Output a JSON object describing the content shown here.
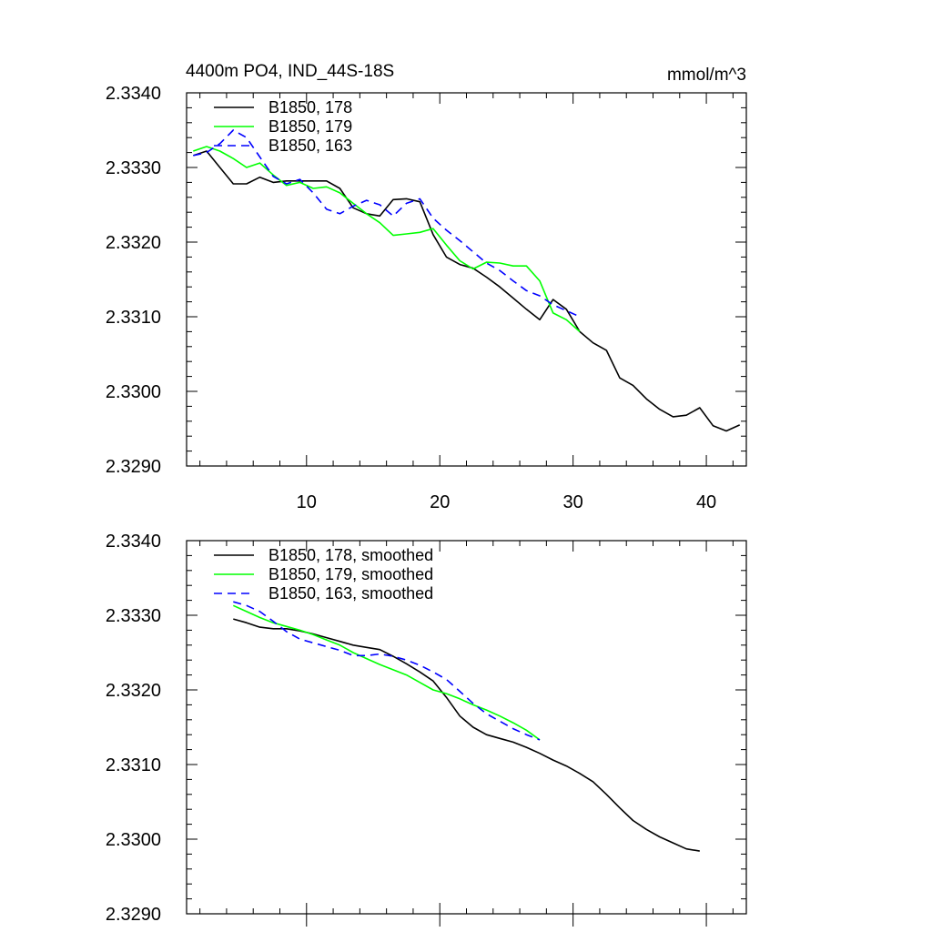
{
  "chart_data": [
    {
      "type": "line",
      "title_left": "4400m PO4, IND_44S-18S",
      "title_right": "mmol/m^3",
      "xlabel": "",
      "ylabel": "",
      "xlim": [
        1,
        43
      ],
      "ylim": [
        2.329,
        2.334
      ],
      "x_ticks": [
        10,
        20,
        30,
        40
      ],
      "x_tick_labels": [
        "10",
        "20",
        "30",
        "40"
      ],
      "y_ticks": [
        2.329,
        2.33,
        2.331,
        2.332,
        2.333,
        2.334
      ],
      "y_tick_labels": [
        "2.3290",
        "2.3300",
        "2.3310",
        "2.3320",
        "2.3330",
        "2.3340"
      ],
      "legend_position": "top-left",
      "series": [
        {
          "name": "B1850, 178",
          "color": "#000000",
          "dash": "solid",
          "x": [
            1.5,
            2.5,
            3.5,
            4.5,
            5.5,
            6.5,
            7.5,
            8.5,
            9.5,
            10.5,
            11.5,
            12.5,
            13.5,
            14.5,
            15.5,
            16.5,
            17.5,
            18.5,
            19.5,
            20.5,
            21.5,
            22.5,
            23.5,
            24.5,
            25.5,
            26.5,
            27.5,
            28.5,
            29.5,
            30.5,
            31.5,
            32.5,
            33.5,
            34.5,
            35.5,
            36.5,
            37.5,
            38.5,
            39.5,
            40.5,
            41.5,
            42.5
          ],
          "y": [
            2.33316,
            2.33322,
            2.333,
            2.33278,
            2.33278,
            2.33287,
            2.3328,
            2.33282,
            2.33282,
            2.33282,
            2.33282,
            2.33272,
            2.33246,
            2.33238,
            2.33235,
            2.33257,
            2.33258,
            2.33254,
            2.3321,
            2.3318,
            2.3317,
            2.33165,
            2.33153,
            2.3314,
            2.33125,
            2.3311,
            2.33096,
            2.33123,
            2.3311,
            2.3308,
            2.33065,
            2.33055,
            2.33018,
            2.33008,
            2.3299,
            2.32976,
            2.32966,
            2.32968,
            2.32978,
            2.32954,
            2.32947,
            2.32955
          ]
        },
        {
          "name": "B1850, 179",
          "color": "#00ff00",
          "dash": "solid",
          "x": [
            1.5,
            2.5,
            3.5,
            4.5,
            5.5,
            6.5,
            7.5,
            8.5,
            9.5,
            10.5,
            11.5,
            12.5,
            13.5,
            14.5,
            15.5,
            16.5,
            17.5,
            18.5,
            19.5,
            20.5,
            21.5,
            22.5,
            23.5,
            24.5,
            25.5,
            26.5,
            27.5,
            28.5,
            29.5,
            30.5
          ],
          "y": [
            2.33322,
            2.33328,
            2.33322,
            2.33312,
            2.333,
            2.33306,
            2.3329,
            2.33276,
            2.3328,
            2.33272,
            2.33274,
            2.33266,
            2.33252,
            2.33238,
            2.33226,
            2.33209,
            2.33211,
            2.33213,
            2.33218,
            2.33196,
            2.33175,
            2.33164,
            2.33173,
            2.33172,
            2.33168,
            2.33168,
            2.33148,
            2.33105,
            2.33096,
            2.3308
          ]
        },
        {
          "name": "B1850, 163",
          "color": "#0000ff",
          "dash": "dashed",
          "x": [
            1.5,
            2.5,
            3.5,
            4.5,
            5.5,
            6.5,
            7.5,
            8.5,
            9.5,
            10.5,
            11.5,
            12.5,
            13.5,
            14.5,
            15.5,
            16.5,
            17.5,
            18.5,
            19.5,
            20.5,
            21.5,
            22.5,
            23.5,
            24.5,
            25.5,
            26.5,
            27.5,
            28.5,
            29.5,
            30.5
          ],
          "y": [
            2.33316,
            2.3332,
            2.33332,
            2.3335,
            2.3334,
            2.33314,
            2.33288,
            2.33278,
            2.33284,
            2.33266,
            2.33244,
            2.33238,
            2.33248,
            2.33256,
            2.3325,
            2.33235,
            2.33252,
            2.33258,
            2.33232,
            2.33216,
            2.33202,
            2.33187,
            2.33172,
            2.33162,
            2.33148,
            2.33135,
            2.33128,
            2.33116,
            2.33108,
            2.331
          ]
        }
      ]
    },
    {
      "type": "line",
      "title_left": "",
      "title_right": "",
      "xlabel": "",
      "ylabel": "",
      "xlim": [
        1,
        43
      ],
      "ylim": [
        2.329,
        2.334
      ],
      "x_ticks": [
        10,
        20,
        30,
        40
      ],
      "x_tick_labels": [],
      "y_ticks": [
        2.329,
        2.33,
        2.331,
        2.332,
        2.333,
        2.334
      ],
      "y_tick_labels": [
        "2.3290",
        "2.3300",
        "2.3310",
        "2.3320",
        "2.3330",
        "2.3340"
      ],
      "legend_position": "top-left",
      "series": [
        {
          "name": "B1850, 178, smoothed",
          "color": "#000000",
          "dash": "solid",
          "x": [
            4.5,
            5.5,
            6.5,
            7.5,
            8.5,
            9.5,
            10.5,
            11.5,
            12.5,
            13.5,
            14.5,
            15.5,
            16.5,
            17.5,
            18.5,
            19.5,
            20.5,
            21.5,
            22.5,
            23.5,
            24.5,
            25.5,
            26.5,
            27.5,
            28.5,
            29.5,
            30.5,
            31.5,
            32.5,
            33.5,
            34.5,
            35.5,
            36.5,
            37.5,
            38.5,
            39.5
          ],
          "y": [
            2.33295,
            2.3329,
            2.33284,
            2.33282,
            2.33282,
            2.33279,
            2.33275,
            2.3327,
            2.33265,
            2.3326,
            2.33257,
            2.33254,
            2.33245,
            2.33235,
            2.33224,
            2.33212,
            2.3319,
            2.33165,
            2.3315,
            2.3314,
            2.33135,
            2.3313,
            2.33123,
            2.33115,
            2.33106,
            2.33098,
            2.33088,
            2.33077,
            2.3306,
            2.33042,
            2.33025,
            2.33013,
            2.33003,
            2.32995,
            2.32987,
            2.32984
          ]
        },
        {
          "name": "B1850, 179, smoothed",
          "color": "#00ff00",
          "dash": "solid",
          "x": [
            4.5,
            5.5,
            6.5,
            7.5,
            8.5,
            9.5,
            10.5,
            11.5,
            12.5,
            13.5,
            14.5,
            15.5,
            16.5,
            17.5,
            18.5,
            19.5,
            20.5,
            21.5,
            22.5,
            23.5,
            24.5,
            25.5,
            26.5,
            27.5
          ],
          "y": [
            2.33313,
            2.33305,
            2.33297,
            2.3329,
            2.33285,
            2.3328,
            2.33274,
            2.33267,
            2.3326,
            2.3325,
            2.33242,
            2.33234,
            2.33227,
            2.3322,
            2.3321,
            2.332,
            2.33195,
            2.33188,
            2.3318,
            2.33173,
            2.33165,
            2.33156,
            2.33146,
            2.33133
          ]
        },
        {
          "name": "B1850, 163, smoothed",
          "color": "#0000ff",
          "dash": "dashed",
          "x": [
            4.5,
            5.5,
            6.5,
            7.5,
            8.5,
            9.5,
            10.5,
            11.5,
            12.5,
            13.5,
            14.5,
            15.5,
            16.5,
            17.5,
            18.5,
            19.5,
            20.5,
            21.5,
            22.5,
            23.5,
            24.5,
            25.5,
            26.5,
            27.5
          ],
          "y": [
            2.33318,
            2.33313,
            2.33305,
            2.33292,
            2.33278,
            2.33268,
            2.33263,
            2.33258,
            2.33253,
            2.33246,
            2.33246,
            2.33248,
            2.33245,
            2.3324,
            2.33233,
            2.33224,
            2.33214,
            2.33198,
            2.33182,
            2.33168,
            2.33158,
            2.33148,
            2.3314,
            2.33133
          ]
        }
      ]
    }
  ]
}
